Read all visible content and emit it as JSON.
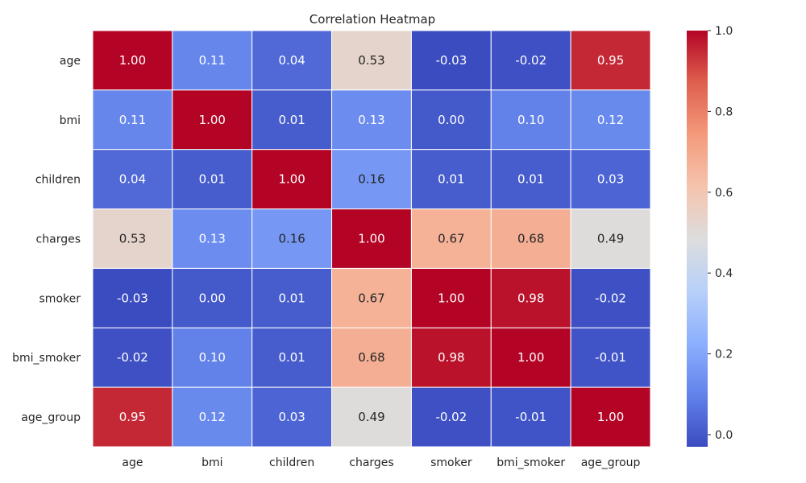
{
  "chart_data": {
    "type": "heatmap",
    "title": "Correlation Heatmap",
    "xlabel": "",
    "ylabel": "",
    "x_categories": [
      "age",
      "bmi",
      "children",
      "charges",
      "smoker",
      "bmi_smoker",
      "age_group"
    ],
    "y_categories": [
      "age",
      "bmi",
      "children",
      "charges",
      "smoker",
      "bmi_smoker",
      "age_group"
    ],
    "values": [
      [
        1.0,
        0.11,
        0.04,
        0.53,
        -0.03,
        -0.02,
        0.95
      ],
      [
        0.11,
        1.0,
        0.01,
        0.13,
        0.0,
        0.1,
        0.12
      ],
      [
        0.04,
        0.01,
        1.0,
        0.16,
        0.01,
        0.01,
        0.03
      ],
      [
        0.53,
        0.13,
        0.16,
        1.0,
        0.67,
        0.68,
        0.49
      ],
      [
        -0.03,
        0.0,
        0.01,
        0.67,
        1.0,
        0.98,
        -0.02
      ],
      [
        -0.02,
        0.1,
        0.01,
        0.68,
        0.98,
        1.0,
        -0.01
      ],
      [
        0.95,
        0.12,
        0.03,
        0.49,
        -0.02,
        -0.01,
        1.0
      ]
    ],
    "colormap": "coolwarm",
    "vmin": -0.03,
    "vmax": 1.0,
    "colorbar": {
      "ticks": [
        0.0,
        0.2,
        0.4,
        0.6,
        0.8,
        1.0
      ],
      "tick_labels": [
        "0.0",
        "0.2",
        "0.4",
        "0.6",
        "0.8",
        "1.0"
      ],
      "placement": "right"
    },
    "cell_border_color": "#ffffff",
    "annotations": true
  }
}
